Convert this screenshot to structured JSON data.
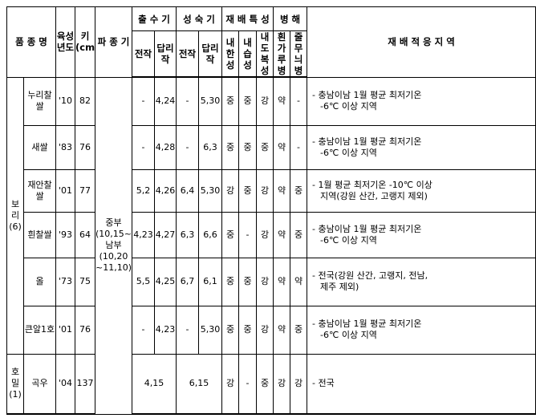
{
  "header": {
    "variety": "품 종 명",
    "year": "육성 년도",
    "height": "키 (cm)",
    "sowing": "파 종 기",
    "heading": "출 수 기",
    "maturity": "성 숙 기",
    "traits": "재 배 특 성",
    "disease": "병 해",
    "region": "재 배 적 응 지 역",
    "sub": {
      "heading_prev": "전작",
      "heading_paddy": "답리작",
      "maturity_prev": "전작",
      "maturity_paddy": "답리작",
      "cold": "내한성",
      "wet": "내습성",
      "lodging": "내도복성",
      "mildew": "흰가루병",
      "stripe": "줄무늬병"
    }
  },
  "groups": [
    {
      "label": "보리",
      "count": "(6)"
    },
    {
      "label": "호밀",
      "count": "(1)"
    }
  ],
  "sowing_period": [
    "중부",
    "(10,15~31)",
    "남부",
    "(10,20",
    "~11,10)"
  ],
  "rows": [
    {
      "name": "누리찰쌀",
      "year": "'10",
      "height": "82",
      "h_prev": "-",
      "h_paddy": "4,24",
      "m_prev": "-",
      "m_paddy": "5,30",
      "cold": "중",
      "wet": "중",
      "lodging": "강",
      "mildew": "약",
      "stripe": "-",
      "region": [
        "- 충남이남 1월 평균 최저기온",
        "-6℃ 이상 지역"
      ]
    },
    {
      "name": "새쌀",
      "year": "'83",
      "height": "76",
      "h_prev": "-",
      "h_paddy": "4,28",
      "m_prev": "-",
      "m_paddy": "6,3",
      "cold": "중",
      "wet": "중",
      "lodging": "중",
      "mildew": "약",
      "stripe": "-",
      "region": [
        "- 충남이남 1월 평균 최저기온",
        "-6℃ 이상 지역"
      ]
    },
    {
      "name": "재안찰쌀",
      "year": "'01",
      "height": "77",
      "h_prev": "5,2",
      "h_paddy": "4,26",
      "m_prev": "6,4",
      "m_paddy": "5,30",
      "cold": "강",
      "wet": "중",
      "lodging": "강",
      "mildew": "약",
      "stripe": "중",
      "region": [
        "- 1월 평균 최저기온 -10℃ 이상",
        "지역(강원 산간, 고랭지 제외)"
      ]
    },
    {
      "name": "흰찰쌀",
      "year": "'93",
      "height": "64",
      "h_prev": "4,23",
      "h_paddy": "4,27",
      "m_prev": "6,3",
      "m_paddy": "6,6",
      "cold": "중",
      "wet": "-",
      "lodging": "강",
      "mildew": "약",
      "stripe": "중",
      "region": [
        "- 충남이남 1월 평균 최저기온",
        "-6℃ 이상 지역"
      ]
    },
    {
      "name": "올",
      "year": "'73",
      "height": "75",
      "h_prev": "5,5",
      "h_paddy": "4,25",
      "m_prev": "6,7",
      "m_paddy": "6,1",
      "cold": "중",
      "wet": "중",
      "lodging": "강",
      "mildew": "약",
      "stripe": "약",
      "region": [
        "- 전국(강원 산간, 고랭지, 전남,",
        "제주 제외)"
      ]
    },
    {
      "name": "큰알1호",
      "year": "'01",
      "height": "76",
      "h_prev": "-",
      "h_paddy": "4,23",
      "m_prev": "-",
      "m_paddy": "5,30",
      "cold": "중",
      "wet": "중",
      "lodging": "강",
      "mildew": "약",
      "stripe": "중",
      "region": [
        "- 충남이남 1월 평균 최저기온",
        "-6℃ 이상 지역"
      ]
    }
  ],
  "rye": {
    "name": "곡우",
    "year": "'04",
    "height": "137",
    "heading": "4,15",
    "maturity": "6,15",
    "cold": "강",
    "wet": "-",
    "lodging": "중",
    "mildew": "강",
    "stripe": "강",
    "region": [
      "- 전국"
    ]
  }
}
